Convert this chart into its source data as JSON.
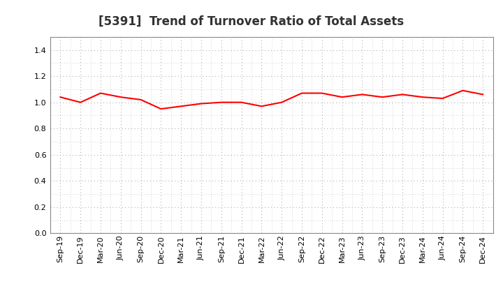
{
  "title": "[5391]  Trend of Turnover Ratio of Total Assets",
  "x_labels": [
    "Sep-19",
    "Dec-19",
    "Mar-20",
    "Jun-20",
    "Sep-20",
    "Dec-20",
    "Mar-21",
    "Jun-21",
    "Sep-21",
    "Dec-21",
    "Mar-22",
    "Jun-22",
    "Sep-22",
    "Dec-22",
    "Mar-23",
    "Jun-23",
    "Sep-23",
    "Dec-23",
    "Mar-24",
    "Jun-24",
    "Sep-24",
    "Dec-24"
  ],
  "y_values": [
    1.04,
    1.0,
    1.07,
    1.04,
    1.02,
    0.95,
    0.97,
    0.99,
    1.0,
    1.0,
    0.97,
    1.0,
    1.07,
    1.07,
    1.04,
    1.06,
    1.04,
    1.06,
    1.04,
    1.03,
    1.09,
    1.06
  ],
  "ylim": [
    0.0,
    1.5
  ],
  "yticks": [
    0.0,
    0.2,
    0.4,
    0.6,
    0.8,
    1.0,
    1.2,
    1.4
  ],
  "line_color": "#ff0000",
  "line_width": 1.5,
  "background_color": "#ffffff",
  "plot_bg_color": "#ffffff",
  "grid_color": "#b0b0b0",
  "title_fontsize": 12,
  "tick_fontsize": 8
}
